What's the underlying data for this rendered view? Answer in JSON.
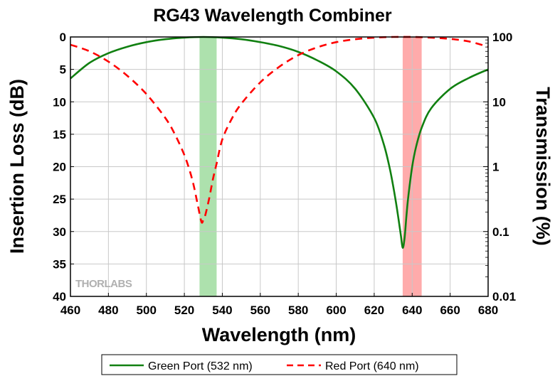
{
  "chart_data": {
    "type": "line",
    "title": "RG43 Wavelength Combiner",
    "xlabel": "Wavelength (nm)",
    "ylabel": "Insertion Loss (dB)",
    "y2label": "Transmission (%)",
    "xlim": [
      460,
      680
    ],
    "ylim": [
      40,
      0
    ],
    "y2lim_log": [
      0.01,
      100
    ],
    "xticks": [
      "460",
      "480",
      "500",
      "520",
      "540",
      "560",
      "580",
      "600",
      "620",
      "640",
      "660",
      "680"
    ],
    "yticks": [
      "0",
      "5",
      "10",
      "15",
      "20",
      "25",
      "30",
      "35",
      "40"
    ],
    "y2ticks": [
      "100",
      "10",
      "1",
      "0.1",
      "0.01"
    ],
    "grid": true,
    "legend_position": "bottom",
    "watermark": "THORLABS",
    "highlight_bands": [
      {
        "x": [
          528,
          537
        ],
        "color": "#9fdc9f"
      },
      {
        "x": [
          635,
          645
        ],
        "color": "#ff9c9c"
      }
    ],
    "series": [
      {
        "name": "Green Port (532 nm)",
        "color": "#118011",
        "dash": "solid",
        "x": [
          460,
          470,
          480,
          490,
          500,
          510,
          520,
          530,
          540,
          550,
          560,
          570,
          580,
          590,
          600,
          610,
          620,
          625,
          628,
          630,
          632,
          634,
          635,
          636,
          637,
          638,
          640,
          642,
          645,
          650,
          660,
          670,
          680
        ],
        "y": [
          6.4,
          4.0,
          2.5,
          1.5,
          0.8,
          0.35,
          0.1,
          0.0,
          0.1,
          0.35,
          0.8,
          1.4,
          2.3,
          3.6,
          5.3,
          8.0,
          12.5,
          16.5,
          20.0,
          23.0,
          26.5,
          30.5,
          32.5,
          31.0,
          27.5,
          24.5,
          20.0,
          17.0,
          14.0,
          11.0,
          8.0,
          6.3,
          5.0
        ]
      },
      {
        "name": "Red Port (640 nm)",
        "color": "#ff0000",
        "dash": "dashed",
        "x": [
          460,
          470,
          480,
          490,
          500,
          510,
          515,
          520,
          523,
          525,
          527,
          529,
          530,
          531,
          533,
          535,
          537,
          540,
          545,
          550,
          560,
          570,
          580,
          590,
          600,
          610,
          620,
          630,
          640,
          650,
          660,
          670,
          680
        ],
        "y": [
          1.2,
          2.2,
          3.8,
          6.0,
          8.8,
          12.5,
          15.0,
          18.2,
          20.8,
          23.0,
          25.8,
          28.5,
          28.2,
          27.5,
          25.0,
          22.0,
          19.5,
          15.8,
          12.6,
          10.3,
          7.0,
          4.6,
          2.8,
          1.6,
          0.8,
          0.35,
          0.1,
          0.0,
          0.0,
          0.1,
          0.3,
          0.7,
          1.5
        ]
      }
    ]
  }
}
